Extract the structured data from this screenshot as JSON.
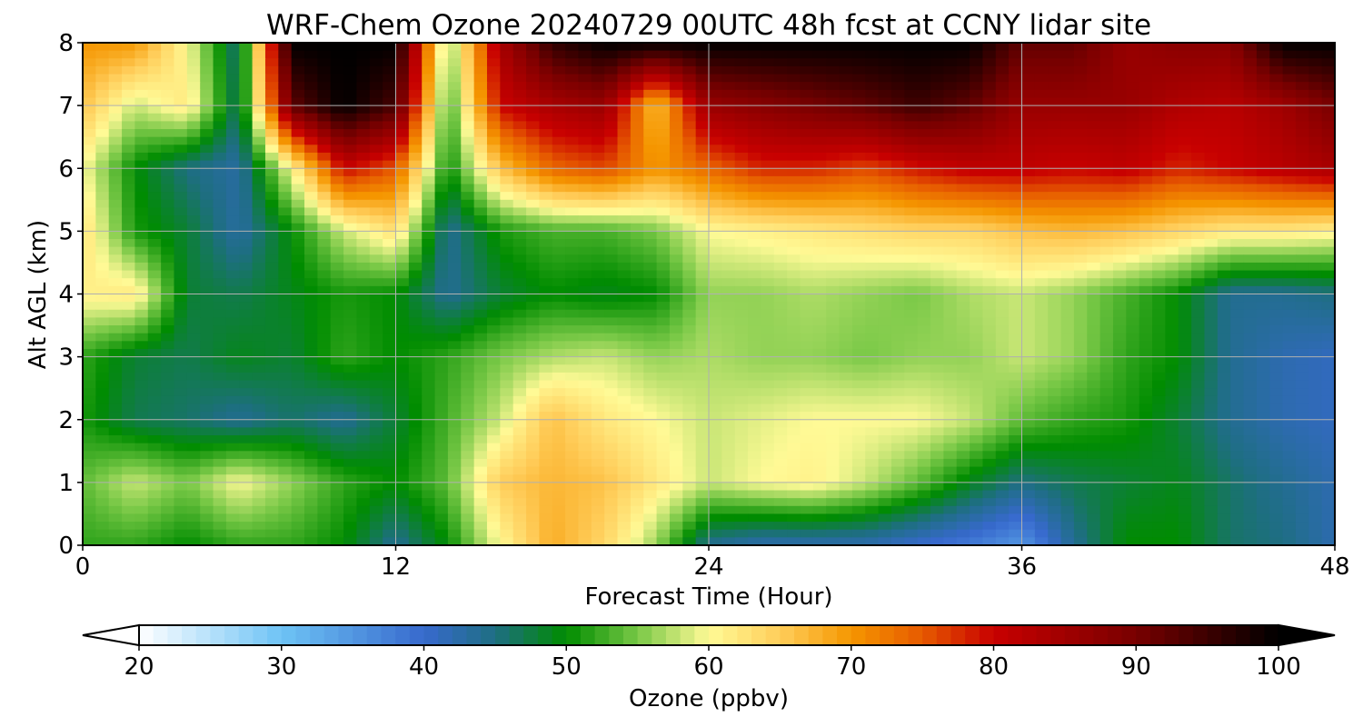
{
  "chart_data": {
    "type": "heatmap",
    "title": "WRF-Chem Ozone  20240729 00UTC 48h fcst at CCNY lidar site",
    "xlabel": "Forecast Time (Hour)",
    "ylabel": "Alt AGL (km)",
    "xlim": [
      0,
      48
    ],
    "ylim": [
      0,
      8
    ],
    "xticks": [
      0,
      12,
      24,
      36,
      48
    ],
    "yticks": [
      0,
      1,
      2,
      3,
      4,
      5,
      6,
      7,
      8
    ],
    "grid": true,
    "x": [
      0,
      2,
      4,
      6,
      8,
      10,
      12,
      14,
      16,
      18,
      20,
      22,
      24,
      26,
      28,
      30,
      32,
      34,
      36,
      38,
      40,
      42,
      44,
      46,
      48
    ],
    "y": [
      0,
      1,
      2,
      3,
      4,
      5,
      6,
      7,
      8
    ],
    "z": [
      [
        52,
        52,
        50,
        52,
        52,
        50,
        44,
        50,
        60,
        68,
        64,
        56,
        44,
        42,
        42,
        42,
        40,
        38,
        35,
        44,
        50,
        50,
        46,
        45,
        42
      ],
      [
        54,
        58,
        55,
        60,
        56,
        52,
        50,
        54,
        65,
        67,
        66,
        62,
        58,
        60,
        61,
        58,
        54,
        49,
        45,
        47,
        48,
        49,
        46,
        44,
        42
      ],
      [
        51,
        47,
        46,
        44,
        46,
        44,
        48,
        53,
        58,
        66,
        62,
        60,
        58,
        59,
        60,
        60,
        60,
        58,
        54,
        52,
        51,
        48,
        44,
        42,
        41
      ],
      [
        52,
        48,
        47,
        49,
        48,
        52,
        50,
        52,
        55,
        57,
        58,
        56,
        57,
        56,
        56,
        55,
        56,
        56,
        58,
        56,
        52,
        50,
        44,
        42,
        41
      ],
      [
        61,
        62,
        48,
        47,
        49,
        51,
        50,
        44,
        48,
        50,
        49,
        50,
        56,
        56,
        57,
        56,
        55,
        57,
        58,
        56,
        53,
        50,
        44,
        44,
        45
      ],
      [
        63,
        51,
        48,
        43,
        50,
        58,
        63,
        44,
        51,
        53,
        53,
        55,
        60,
        61,
        62,
        63,
        64,
        64,
        66,
        67,
        66,
        64,
        62,
        62,
        61
      ],
      [
        60,
        50,
        45,
        43,
        60,
        80,
        75,
        50,
        66,
        74,
        76,
        70,
        74,
        78,
        78,
        76,
        79,
        81,
        81,
        80,
        81,
        78,
        80,
        82,
        84
      ],
      [
        66,
        58,
        62,
        46,
        92,
        100,
        94,
        52,
        80,
        84,
        86,
        66,
        86,
        88,
        90,
        92,
        95,
        92,
        86,
        86,
        86,
        83,
        82,
        85,
        90
      ],
      [
        70,
        70,
        60,
        45,
        100,
        100,
        100,
        55,
        84,
        96,
        100,
        100,
        100,
        100,
        100,
        100,
        100,
        100,
        92,
        92,
        86,
        88,
        88,
        100,
        100
      ]
    ]
  },
  "colorbar": {
    "label": "Ozone  (ppbv)",
    "min": 20,
    "max": 100,
    "ticks": [
      20,
      30,
      40,
      50,
      60,
      70,
      80,
      90,
      100
    ],
    "extend": "both"
  }
}
